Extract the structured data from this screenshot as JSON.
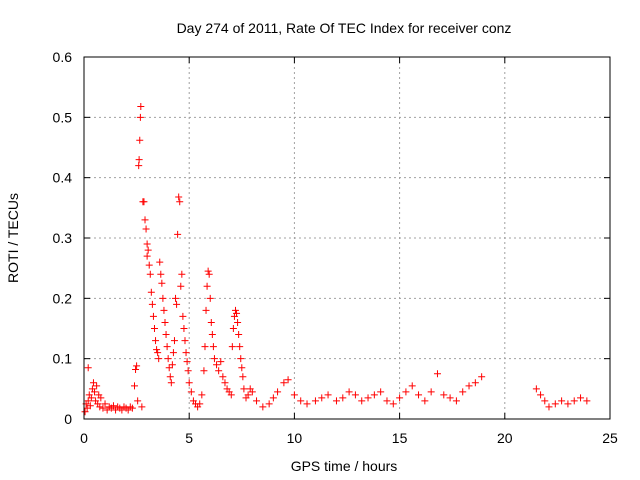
{
  "chart_data": {
    "type": "scatter",
    "title": "Day 274 of 2011, Rate Of TEC Index for receiver conz",
    "xlabel": "GPS time / hours",
    "ylabel": "ROTI / TECUs",
    "xlim": [
      0,
      25
    ],
    "ylim": [
      0,
      0.6
    ],
    "x_ticks": [
      0,
      5,
      10,
      15,
      20,
      25
    ],
    "x_tick_labels": [
      "0",
      "5",
      "10",
      "15",
      "20",
      "25"
    ],
    "y_ticks": [
      0,
      0.1,
      0.2,
      0.3,
      0.4,
      0.5,
      0.6
    ],
    "y_tick_labels": [
      "0",
      "0.1",
      "0.2",
      "0.3",
      "0.4",
      "0.5",
      "0.6"
    ],
    "grid": true,
    "marker": "+",
    "color": "#ff0000",
    "series": [
      {
        "points": [
          [
            0.05,
            0.012
          ],
          [
            0.1,
            0.025
          ],
          [
            0.15,
            0.018
          ],
          [
            0.2,
            0.03
          ],
          [
            0.2,
            0.085
          ],
          [
            0.25,
            0.04
          ],
          [
            0.3,
            0.022
          ],
          [
            0.35,
            0.035
          ],
          [
            0.4,
            0.05
          ],
          [
            0.45,
            0.06
          ],
          [
            0.5,
            0.045
          ],
          [
            0.55,
            0.03
          ],
          [
            0.6,
            0.055
          ],
          [
            0.65,
            0.025
          ],
          [
            0.7,
            0.04
          ],
          [
            0.75,
            0.02
          ],
          [
            0.8,
            0.035
          ],
          [
            0.9,
            0.018
          ],
          [
            1.0,
            0.025
          ],
          [
            1.1,
            0.015
          ],
          [
            1.2,
            0.02
          ],
          [
            1.3,
            0.018
          ],
          [
            1.4,
            0.022
          ],
          [
            1.5,
            0.015
          ],
          [
            1.6,
            0.02
          ],
          [
            1.7,
            0.018
          ],
          [
            1.8,
            0.015
          ],
          [
            1.9,
            0.02
          ],
          [
            2.0,
            0.018
          ],
          [
            2.1,
            0.015
          ],
          [
            2.2,
            0.02
          ],
          [
            2.3,
            0.018
          ],
          [
            2.4,
            0.055
          ],
          [
            2.45,
            0.082
          ],
          [
            2.5,
            0.088
          ],
          [
            2.55,
            0.03
          ],
          [
            2.6,
            0.42
          ],
          [
            2.62,
            0.43
          ],
          [
            2.65,
            0.462
          ],
          [
            2.68,
            0.5
          ],
          [
            2.7,
            0.518
          ],
          [
            2.75,
            0.02
          ],
          [
            2.8,
            0.36
          ],
          [
            2.85,
            0.36
          ],
          [
            2.9,
            0.33
          ],
          [
            2.95,
            0.315
          ],
          [
            3.0,
            0.29
          ],
          [
            3.0,
            0.27
          ],
          [
            3.05,
            0.28
          ],
          [
            3.1,
            0.255
          ],
          [
            3.15,
            0.24
          ],
          [
            3.2,
            0.21
          ],
          [
            3.25,
            0.19
          ],
          [
            3.3,
            0.17
          ],
          [
            3.35,
            0.15
          ],
          [
            3.4,
            0.13
          ],
          [
            3.45,
            0.115
          ],
          [
            3.5,
            0.11
          ],
          [
            3.55,
            0.1
          ],
          [
            3.6,
            0.26
          ],
          [
            3.65,
            0.24
          ],
          [
            3.7,
            0.225
          ],
          [
            3.75,
            0.2
          ],
          [
            3.8,
            0.18
          ],
          [
            3.85,
            0.16
          ],
          [
            3.9,
            0.14
          ],
          [
            3.95,
            0.12
          ],
          [
            4.0,
            0.1
          ],
          [
            4.05,
            0.085
          ],
          [
            4.1,
            0.07
          ],
          [
            4.15,
            0.06
          ],
          [
            4.2,
            0.09
          ],
          [
            4.25,
            0.11
          ],
          [
            4.3,
            0.13
          ],
          [
            4.35,
            0.2
          ],
          [
            4.4,
            0.19
          ],
          [
            4.45,
            0.306
          ],
          [
            4.5,
            0.368
          ],
          [
            4.55,
            0.36
          ],
          [
            4.6,
            0.22
          ],
          [
            4.65,
            0.24
          ],
          [
            4.7,
            0.17
          ],
          [
            4.75,
            0.15
          ],
          [
            4.8,
            0.13
          ],
          [
            4.85,
            0.11
          ],
          [
            4.9,
            0.095
          ],
          [
            4.95,
            0.08
          ],
          [
            5.0,
            0.06
          ],
          [
            5.1,
            0.045
          ],
          [
            5.2,
            0.03
          ],
          [
            5.3,
            0.025
          ],
          [
            5.4,
            0.02
          ],
          [
            5.5,
            0.025
          ],
          [
            5.6,
            0.04
          ],
          [
            5.7,
            0.08
          ],
          [
            5.75,
            0.12
          ],
          [
            5.8,
            0.18
          ],
          [
            5.85,
            0.22
          ],
          [
            5.9,
            0.245
          ],
          [
            5.95,
            0.24
          ],
          [
            6.0,
            0.2
          ],
          [
            6.05,
            0.16
          ],
          [
            6.1,
            0.14
          ],
          [
            6.15,
            0.12
          ],
          [
            6.2,
            0.1
          ],
          [
            6.3,
            0.09
          ],
          [
            6.4,
            0.08
          ],
          [
            6.5,
            0.095
          ],
          [
            6.6,
            0.07
          ],
          [
            6.7,
            0.06
          ],
          [
            6.8,
            0.05
          ],
          [
            6.9,
            0.045
          ],
          [
            7.0,
            0.04
          ],
          [
            7.05,
            0.12
          ],
          [
            7.1,
            0.15
          ],
          [
            7.15,
            0.17
          ],
          [
            7.2,
            0.18
          ],
          [
            7.25,
            0.175
          ],
          [
            7.3,
            0.16
          ],
          [
            7.35,
            0.14
          ],
          [
            7.4,
            0.12
          ],
          [
            7.45,
            0.1
          ],
          [
            7.5,
            0.085
          ],
          [
            7.55,
            0.07
          ],
          [
            7.6,
            0.05
          ],
          [
            7.7,
            0.035
          ],
          [
            7.8,
            0.04
          ],
          [
            7.9,
            0.05
          ],
          [
            8.0,
            0.045
          ],
          [
            8.2,
            0.03
          ],
          [
            8.5,
            0.02
          ],
          [
            8.8,
            0.025
          ],
          [
            9.0,
            0.035
          ],
          [
            9.2,
            0.045
          ],
          [
            9.5,
            0.06
          ],
          [
            9.7,
            0.065
          ],
          [
            10.0,
            0.04
          ],
          [
            10.3,
            0.03
          ],
          [
            10.6,
            0.025
          ],
          [
            11.0,
            0.03
          ],
          [
            11.3,
            0.035
          ],
          [
            11.6,
            0.04
          ],
          [
            12.0,
            0.03
          ],
          [
            12.3,
            0.035
          ],
          [
            12.6,
            0.045
          ],
          [
            12.9,
            0.04
          ],
          [
            13.2,
            0.03
          ],
          [
            13.5,
            0.035
          ],
          [
            13.8,
            0.04
          ],
          [
            14.1,
            0.045
          ],
          [
            14.4,
            0.03
          ],
          [
            14.7,
            0.025
          ],
          [
            15.0,
            0.035
          ],
          [
            15.3,
            0.045
          ],
          [
            15.6,
            0.055
          ],
          [
            15.9,
            0.04
          ],
          [
            16.2,
            0.03
          ],
          [
            16.5,
            0.045
          ],
          [
            16.8,
            0.075
          ],
          [
            17.1,
            0.04
          ],
          [
            17.4,
            0.035
          ],
          [
            17.7,
            0.03
          ],
          [
            18.0,
            0.045
          ],
          [
            18.3,
            0.055
          ],
          [
            18.6,
            0.06
          ],
          [
            18.9,
            0.07
          ],
          [
            21.5,
            0.05
          ],
          [
            21.7,
            0.04
          ],
          [
            21.9,
            0.03
          ],
          [
            22.1,
            0.02
          ],
          [
            22.4,
            0.025
          ],
          [
            22.7,
            0.03
          ],
          [
            23.0,
            0.025
          ],
          [
            23.3,
            0.03
          ],
          [
            23.6,
            0.035
          ],
          [
            23.9,
            0.03
          ]
        ]
      }
    ]
  }
}
